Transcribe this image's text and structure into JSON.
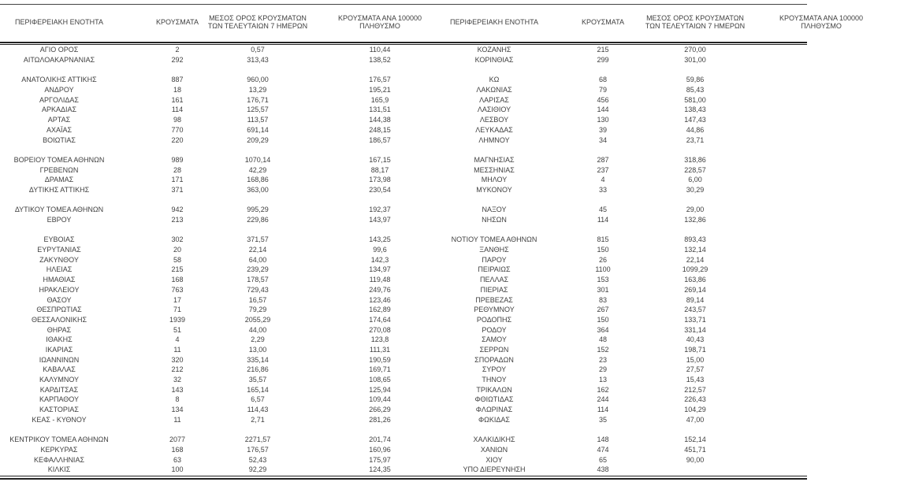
{
  "colors": {
    "background": "#ffffff",
    "text": "#3f3f3f",
    "rule": "#222222"
  },
  "tables": [
    {
      "name": "regional-cases-left",
      "columns": [
        {
          "lines": [
            "ΠΕΡΙΦΕΡΕΙΑΚΗ ΕΝΟΤΗΤΑ"
          ]
        },
        {
          "lines": [
            "ΚΡΟΥΣΜΑΤΑ"
          ]
        },
        {
          "lines": [
            "ΜΕΣΟΣ ΟΡΟΣ ΚΡΟΥΣΜΑΤΩΝ",
            "ΤΩΝ ΤΕΛΕΥΤΑΙΩΝ 7 ΗΜΕΡΩΝ"
          ]
        },
        {
          "lines": [
            "ΚΡΟΥΣΜΑΤΑ ΑΝΑ 100000",
            "ΠΛΗΘΥΣΜΟ"
          ]
        }
      ],
      "rows": [
        [
          "ΑΓΙΟ ΟΡΟΣ",
          "2",
          "0,57",
          "110,44"
        ],
        [
          "ΑΙΤΩΛΟΑΚΑΡΝΑΝΙΑΣ",
          "292",
          "313,43",
          "138,52"
        ],
        null,
        [
          "ΑΝΑΤΟΛΙΚΗΣ ΑΤΤΙΚΗΣ",
          "887",
          "960,00",
          "176,57"
        ],
        [
          "ΑΝΔΡΟΥ",
          "18",
          "13,29",
          "195,21"
        ],
        [
          "ΑΡΓΟΛΙΔΑΣ",
          "161",
          "176,71",
          "165,9"
        ],
        [
          "ΑΡΚΑΔΙΑΣ",
          "114",
          "125,57",
          "131,51"
        ],
        [
          "ΑΡΤΑΣ",
          "98",
          "113,57",
          "144,38"
        ],
        [
          "ΑΧΑΪΑΣ",
          "770",
          "691,14",
          "248,15"
        ],
        [
          "ΒΟΙΩΤΙΑΣ",
          "220",
          "209,29",
          "186,57"
        ],
        null,
        [
          "ΒΟΡΕΙΟΥ ΤΟΜΕΑ ΑΘΗΝΩΝ",
          "989",
          "1070,14",
          "167,15"
        ],
        [
          "ΓΡΕΒΕΝΩΝ",
          "28",
          "42,29",
          "88,17"
        ],
        [
          "ΔΡΑΜΑΣ",
          "171",
          "168,86",
          "173,98"
        ],
        [
          "ΔΥΤΙΚΗΣ ΑΤΤΙΚΗΣ",
          "371",
          "363,00",
          "230,54"
        ],
        null,
        [
          "ΔΥΤΙΚΟΥ ΤΟΜΕΑ ΑΘΗΝΩΝ",
          "942",
          "995,29",
          "192,37"
        ],
        [
          "ΕΒΡΟΥ",
          "213",
          "229,86",
          "143,97"
        ],
        null,
        [
          "ΕΥΒΟΙΑΣ",
          "302",
          "371,57",
          "143,25"
        ],
        [
          "ΕΥΡΥΤΑΝΙΑΣ",
          "20",
          "22,14",
          "99,6"
        ],
        [
          "ΖΑΚΥΝΘΟΥ",
          "58",
          "64,00",
          "142,3"
        ],
        [
          "ΗΛΕΙΑΣ",
          "215",
          "239,29",
          "134,97"
        ],
        [
          "ΗΜΑΘΙΑΣ",
          "168",
          "178,57",
          "119,48"
        ],
        [
          "ΗΡΑΚΛΕΙΟΥ",
          "763",
          "729,43",
          "249,76"
        ],
        [
          "ΘΑΣΟΥ",
          "17",
          "16,57",
          "123,46"
        ],
        [
          "ΘΕΣΠΡΩΤΙΑΣ",
          "71",
          "79,29",
          "162,89"
        ],
        [
          "ΘΕΣΣΑΛΟΝΙΚΗΣ",
          "1939",
          "2055,29",
          "174,64"
        ],
        [
          "ΘΗΡΑΣ",
          "51",
          "44,00",
          "270,08"
        ],
        [
          "ΙΘΑΚΗΣ",
          "4",
          "2,29",
          "123,8"
        ],
        [
          "ΙΚΑΡΙΑΣ",
          "11",
          "13,00",
          "111,31"
        ],
        [
          "ΙΩΑΝΝΙΝΩΝ",
          "320",
          "335,14",
          "190,59"
        ],
        [
          "ΚΑΒΑΛΑΣ",
          "212",
          "216,86",
          "169,71"
        ],
        [
          "ΚΑΛΥΜΝΟΥ",
          "32",
          "35,57",
          "108,65"
        ],
        [
          "ΚΑΡΔΙΤΣΑΣ",
          "143",
          "165,14",
          "125,94"
        ],
        [
          "ΚΑΡΠΑΘΟΥ",
          "8",
          "6,57",
          "109,44"
        ],
        [
          "ΚΑΣΤΟΡΙΑΣ",
          "134",
          "114,43",
          "266,29"
        ],
        [
          "ΚΕΑΣ - ΚΥΘΝΟΥ",
          "11",
          "2,71",
          "281,26"
        ],
        null,
        [
          "ΚΕΝΤΡΙΚΟΥ ΤΟΜΕΑ ΑΘΗΝΩΝ",
          "2077",
          "2271,57",
          "201,74"
        ],
        [
          "ΚΕΡΚΥΡΑΣ",
          "168",
          "176,57",
          "160,96"
        ],
        [
          "ΚΕΦΑΛΛΗΝΙΑΣ",
          "63",
          "52,43",
          "175,97"
        ],
        [
          "ΚΙΛΚΙΣ",
          "100",
          "92,29",
          "124,35"
        ]
      ]
    },
    {
      "name": "regional-cases-right",
      "columns": [
        {
          "lines": [
            "ΠΕΡΙΦΕΡΕΙΑΚΗ ΕΝΟΤΗΤΑ"
          ]
        },
        {
          "lines": [
            "ΚΡΟΥΣΜΑΤΑ"
          ]
        },
        {
          "lines": [
            "ΜΕΣΟΣ ΟΡΟΣ ΚΡΟΥΣΜΑΤΩΝ",
            "ΤΩΝ ΤΕΛΕΥΤΑΙΩΝ 7 ΗΜΕΡΩΝ"
          ]
        },
        {
          "lines": [
            "ΚΡΟΥΣΜΑΤΑ ΑΝΑ 100000",
            "ΠΛΗΘΥΣΜΟ"
          ]
        }
      ],
      "rows": [
        [
          "ΚΟΖΑΝΗΣ",
          "215",
          "270,00",
          ""
        ],
        [
          "ΚΟΡΙΝΘΙΑΣ",
          "299",
          "301,00",
          ""
        ],
        null,
        [
          "ΚΩ",
          "68",
          "59,86",
          ""
        ],
        [
          "ΛΑΚΩΝΙΑΣ",
          "79",
          "85,43",
          ""
        ],
        [
          "ΛΑΡΙΣΑΣ",
          "456",
          "581,00",
          ""
        ],
        [
          "ΛΑΣΙΘΙΟΥ",
          "144",
          "138,43",
          ""
        ],
        [
          "ΛΕΣΒΟΥ",
          "130",
          "147,43",
          ""
        ],
        [
          "ΛΕΥΚΑΔΑΣ",
          "39",
          "44,86",
          ""
        ],
        [
          "ΛΗΜΝΟΥ",
          "34",
          "23,71",
          ""
        ],
        null,
        [
          "ΜΑΓΝΗΣΙΑΣ",
          "287",
          "318,86",
          ""
        ],
        [
          "ΜΕΣΣΗΝΙΑΣ",
          "237",
          "228,57",
          ""
        ],
        [
          "ΜΗΛΟΥ",
          "4",
          "6,00",
          ""
        ],
        [
          "ΜΥΚΟΝΟΥ",
          "33",
          "30,29",
          ""
        ],
        null,
        [
          "ΝΑΞΟΥ",
          "45",
          "29,00",
          ""
        ],
        [
          "ΝΗΣΩΝ",
          "114",
          "132,86",
          ""
        ],
        null,
        [
          "ΝΟΤΙΟΥ ΤΟΜΕΑ ΑΘΗΝΩΝ",
          "815",
          "893,43",
          ""
        ],
        [
          "ΞΑΝΘΗΣ",
          "150",
          "132,14",
          ""
        ],
        [
          "ΠΑΡΟΥ",
          "26",
          "22,14",
          ""
        ],
        [
          "ΠΕΙΡΑΙΩΣ",
          "1100",
          "1099,29",
          ""
        ],
        [
          "ΠΕΛΛΑΣ",
          "153",
          "163,86",
          ""
        ],
        [
          "ΠΙΕΡΙΑΣ",
          "301",
          "269,14",
          ""
        ],
        [
          "ΠΡΕΒΕΖΑΣ",
          "83",
          "89,14",
          ""
        ],
        [
          "ΡΕΘΥΜΝΟΥ",
          "267",
          "243,57",
          ""
        ],
        [
          "ΡΟΔΟΠΗΣ",
          "150",
          "133,71",
          ""
        ],
        [
          "ΡΟΔΟΥ",
          "364",
          "331,14",
          ""
        ],
        [
          "ΣΑΜΟΥ",
          "48",
          "40,43",
          ""
        ],
        [
          "ΣΕΡΡΩΝ",
          "152",
          "198,71",
          ""
        ],
        [
          "ΣΠΟΡΑΔΩΝ",
          "23",
          "15,00",
          ""
        ],
        [
          "ΣΥΡΟΥ",
          "29",
          "27,57",
          ""
        ],
        [
          "ΤΗΝΟΥ",
          "13",
          "15,43",
          ""
        ],
        [
          "ΤΡΙΚΑΛΩΝ",
          "162",
          "212,57",
          ""
        ],
        [
          "ΦΘΙΩΤΙΔΑΣ",
          "244",
          "226,43",
          ""
        ],
        [
          "ΦΛΩΡΙΝΑΣ",
          "114",
          "104,29",
          ""
        ],
        [
          "ΦΩΚΙΔΑΣ",
          "35",
          "47,00",
          ""
        ],
        null,
        [
          "ΧΑΛΚΙΔΙΚΗΣ",
          "148",
          "152,14",
          ""
        ],
        [
          "ΧΑΝΙΩΝ",
          "474",
          "451,71",
          ""
        ],
        [
          "ΧΙΟΥ",
          "65",
          "90,00",
          ""
        ],
        [
          "ΥΠΟ ΔΙΕΡΕΥΝΗΣΗ",
          "438",
          "",
          ""
        ]
      ]
    }
  ]
}
